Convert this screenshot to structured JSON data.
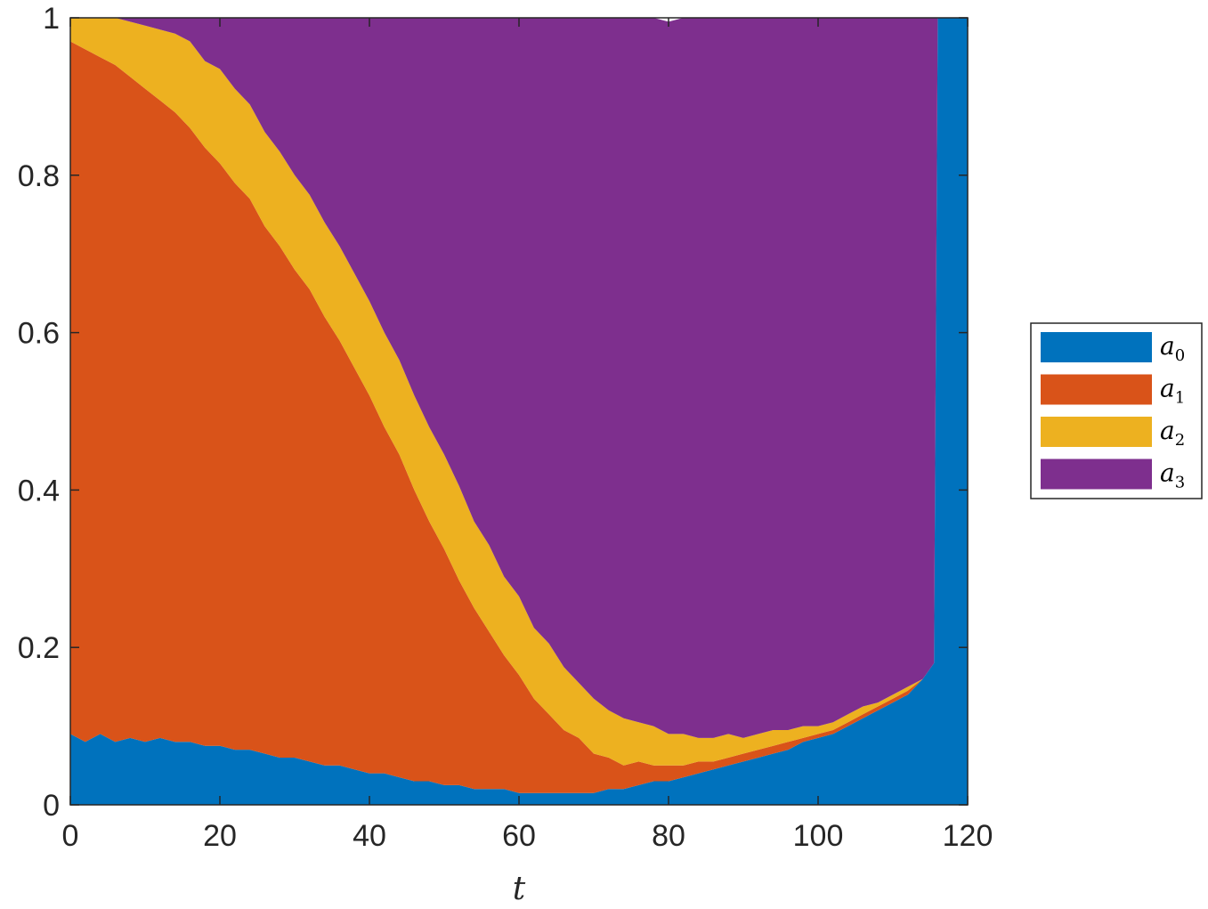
{
  "chart_data": {
    "type": "area",
    "stacked": true,
    "title": "",
    "xlabel": "t",
    "ylabel": "",
    "xlim": [
      0,
      120
    ],
    "ylim": [
      0,
      1
    ],
    "xticks": [
      0,
      20,
      40,
      60,
      80,
      100,
      120
    ],
    "yticks": [
      0,
      0.2,
      0.4,
      0.6,
      0.8,
      1
    ],
    "xtick_labels": [
      "0",
      "20",
      "40",
      "60",
      "80",
      "100",
      "120"
    ],
    "ytick_labels": [
      "0",
      "0.2",
      "0.4",
      "0.6",
      "0.8",
      "1"
    ],
    "grid": false,
    "legend_position": "outside-right",
    "x": [
      0,
      2,
      4,
      6,
      8,
      10,
      12,
      14,
      16,
      18,
      20,
      22,
      24,
      26,
      28,
      30,
      32,
      34,
      36,
      38,
      40,
      42,
      44,
      46,
      48,
      50,
      52,
      54,
      56,
      58,
      60,
      62,
      64,
      66,
      68,
      70,
      72,
      74,
      76,
      78,
      80,
      82,
      84,
      86,
      88,
      90,
      92,
      94,
      96,
      98,
      100,
      102,
      104,
      106,
      108,
      110,
      112,
      114,
      115.5,
      116,
      118,
      120
    ],
    "series": [
      {
        "name": "a",
        "name_sub": "0",
        "color": "#0072BD",
        "values": [
          0.09,
          0.08,
          0.09,
          0.08,
          0.085,
          0.08,
          0.085,
          0.08,
          0.08,
          0.075,
          0.075,
          0.07,
          0.07,
          0.065,
          0.06,
          0.06,
          0.055,
          0.05,
          0.05,
          0.045,
          0.04,
          0.04,
          0.035,
          0.03,
          0.03,
          0.025,
          0.025,
          0.02,
          0.02,
          0.02,
          0.015,
          0.015,
          0.015,
          0.015,
          0.015,
          0.015,
          0.02,
          0.02,
          0.025,
          0.03,
          0.03,
          0.035,
          0.04,
          0.045,
          0.05,
          0.055,
          0.06,
          0.065,
          0.07,
          0.08,
          0.085,
          0.09,
          0.1,
          0.11,
          0.12,
          0.13,
          0.14,
          0.16,
          0.18,
          1.0,
          1.0,
          1.0
        ]
      },
      {
        "name": "a",
        "name_sub": "1",
        "color": "#D95319",
        "values": [
          0.88,
          0.88,
          0.86,
          0.86,
          0.84,
          0.83,
          0.81,
          0.8,
          0.78,
          0.76,
          0.74,
          0.72,
          0.7,
          0.67,
          0.65,
          0.62,
          0.6,
          0.57,
          0.54,
          0.51,
          0.48,
          0.44,
          0.41,
          0.37,
          0.33,
          0.3,
          0.26,
          0.23,
          0.2,
          0.17,
          0.15,
          0.12,
          0.1,
          0.08,
          0.07,
          0.05,
          0.04,
          0.03,
          0.03,
          0.02,
          0.02,
          0.015,
          0.015,
          0.01,
          0.01,
          0.01,
          0.01,
          0.01,
          0.01,
          0.005,
          0.005,
          0.005,
          0.005,
          0.005,
          0.005,
          0.005,
          0.005,
          0.0,
          0.0,
          0.0,
          0.0,
          0.0
        ]
      },
      {
        "name": "a",
        "name_sub": "2",
        "color": "#EDB120",
        "values": [
          0.03,
          0.04,
          0.05,
          0.06,
          0.07,
          0.08,
          0.09,
          0.1,
          0.11,
          0.11,
          0.12,
          0.12,
          0.12,
          0.12,
          0.12,
          0.12,
          0.12,
          0.12,
          0.12,
          0.12,
          0.12,
          0.12,
          0.12,
          0.12,
          0.12,
          0.12,
          0.12,
          0.11,
          0.11,
          0.1,
          0.1,
          0.09,
          0.09,
          0.08,
          0.07,
          0.07,
          0.06,
          0.06,
          0.05,
          0.05,
          0.04,
          0.04,
          0.03,
          0.03,
          0.03,
          0.02,
          0.02,
          0.02,
          0.015,
          0.015,
          0.01,
          0.01,
          0.01,
          0.01,
          0.005,
          0.005,
          0.005,
          0.0,
          0.0,
          0.0,
          0.0,
          0.0
        ]
      },
      {
        "name": "a",
        "name_sub": "3",
        "color": "#7E2F8E",
        "values": [
          0.0,
          0.0,
          0.0,
          0.0,
          0.005,
          0.01,
          0.015,
          0.02,
          0.03,
          0.055,
          0.065,
          0.09,
          0.11,
          0.145,
          0.17,
          0.2,
          0.225,
          0.26,
          0.29,
          0.325,
          0.36,
          0.4,
          0.435,
          0.48,
          0.52,
          0.555,
          0.595,
          0.64,
          0.67,
          0.71,
          0.735,
          0.775,
          0.795,
          0.825,
          0.845,
          0.865,
          0.88,
          0.89,
          0.895,
          0.9,
          0.905,
          0.91,
          0.915,
          0.915,
          0.91,
          0.915,
          0.91,
          0.905,
          0.905,
          0.9,
          0.9,
          0.895,
          0.885,
          0.875,
          0.87,
          0.86,
          0.85,
          0.84,
          0.82,
          0.0,
          0.0,
          0.0
        ]
      }
    ]
  }
}
